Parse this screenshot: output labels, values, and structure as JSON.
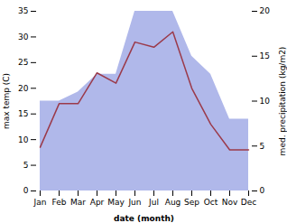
{
  "chart_data": {
    "type": "line",
    "xlabel": "date (month)",
    "ylabel": "max temp (C)",
    "y2label": "med. precipitation (kg/m2)",
    "categories": [
      "Jan",
      "Feb",
      "Mar",
      "Apr",
      "May",
      "Jun",
      "Jul",
      "Aug",
      "Sep",
      "Oct",
      "Nov",
      "Dec"
    ],
    "series": [
      {
        "type": "area",
        "axis": "y2",
        "color": "#b0b8ea",
        "values": [
          10,
          10,
          11,
          13,
          13,
          20,
          20,
          20,
          15,
          13,
          8,
          8
        ]
      },
      {
        "type": "line",
        "color": "#9b3a4a",
        "values": [
          8.5,
          17,
          17,
          23,
          21,
          29,
          28,
          31,
          20,
          13,
          8,
          8
        ]
      }
    ],
    "ylim": [
      0,
      35
    ],
    "yticks": [
      0,
      5,
      10,
      15,
      20,
      25,
      30,
      35
    ],
    "y2lim": [
      0,
      20
    ],
    "y2ticks": [
      0,
      5,
      10,
      15,
      20
    ],
    "grid": false
  }
}
